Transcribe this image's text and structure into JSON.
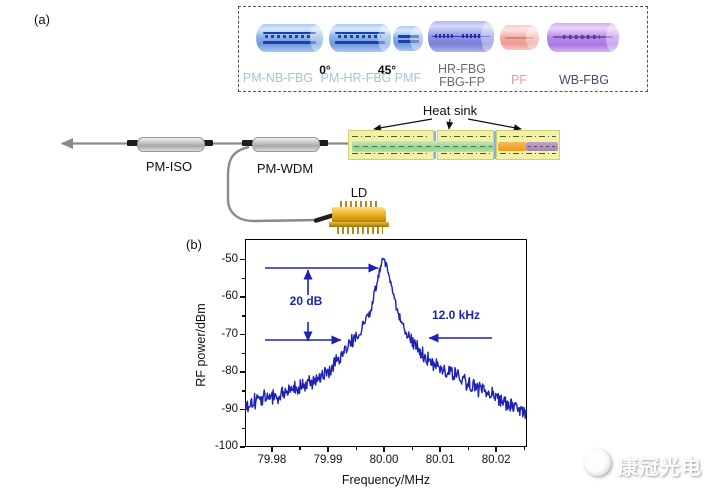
{
  "figure": {
    "panel_a_label": "(a)",
    "panel_b_label": "(b)"
  },
  "legend_box": {
    "items": [
      {
        "label": "PM-NB-FBG",
        "label_color": "#a3c6d1",
        "body_color": "blue"
      },
      {
        "label": "PM-HR-FBG",
        "label_color": "#a3c6d1",
        "body_color": "blue"
      },
      {
        "label": "PMF",
        "label_color": "#a3c6d1",
        "body_color": "blue"
      },
      {
        "label_line1": "HR-FBG",
        "label_line2": "FBG-FP",
        "label_color": "#6b6b6b",
        "body_color": "periwinkle"
      },
      {
        "label": "PF",
        "label_color": "#e79c92",
        "body_color": "pink"
      },
      {
        "label": "WB-FBG",
        "label_color": "#57456a",
        "body_color": "purple"
      }
    ],
    "angle_0": "0°",
    "angle_45": "45°"
  },
  "setup": {
    "pm_iso": "PM-ISO",
    "pm_wdm": "PM-WDM",
    "ld": "LD",
    "heat_sink": "Heat sink"
  },
  "chart_data": {
    "type": "line",
    "title": "",
    "xlabel": "Frequency/MHz",
    "ylabel": "RF power/dBm",
    "xlim": [
      79.9752,
      80.0255
    ],
    "ylim": [
      -100,
      -44.5
    ],
    "x_ticks": [
      79.98,
      79.99,
      80.0,
      80.01,
      80.02
    ],
    "x_tick_labels": [
      "79.98",
      "79.99",
      "80.00",
      "80.01",
      "80.02"
    ],
    "x_minor_ticks": [
      79.985,
      79.995,
      80.005,
      80.015,
      80.025
    ],
    "y_ticks": [
      -50,
      -60,
      -70,
      -80,
      -90,
      -100
    ],
    "y_tick_labels": [
      "-50",
      "-60",
      "-70",
      "-80",
      "-90",
      "-100"
    ],
    "y_minor_ticks": [
      -55,
      -65,
      -75,
      -85,
      -95
    ],
    "grid": false,
    "series_color": "#1e22b4",
    "annotation_color": "#1e22b4",
    "peak": {
      "frequency_mhz": 80.0,
      "power_dbm": -49.8
    },
    "noise_floor_dbm": -90,
    "annotations": [
      {
        "text": "20 dB"
      },
      {
        "text": "12.0 kHz"
      }
    ],
    "envelope": [
      [
        79.9752,
        -89.5
      ],
      [
        79.977,
        -88
      ],
      [
        79.979,
        -86.8
      ],
      [
        79.981,
        -86.2
      ],
      [
        79.983,
        -85.2
      ],
      [
        79.985,
        -84
      ],
      [
        79.987,
        -82.6
      ],
      [
        79.989,
        -81
      ],
      [
        79.9905,
        -79.5
      ],
      [
        79.992,
        -76.5
      ],
      [
        79.9935,
        -73.5
      ],
      [
        79.995,
        -70.8
      ],
      [
        79.996,
        -68.5
      ],
      [
        79.997,
        -65.5
      ],
      [
        79.9978,
        -62
      ],
      [
        79.9985,
        -58
      ],
      [
        79.999,
        -54.5
      ],
      [
        79.9995,
        -51.5
      ],
      [
        80.0,
        -49.8
      ],
      [
        80.0004,
        -51.5
      ],
      [
        80.0008,
        -54
      ],
      [
        80.0013,
        -57.5
      ],
      [
        80.002,
        -61.5
      ],
      [
        80.003,
        -66.5
      ],
      [
        80.004,
        -69.5
      ],
      [
        80.005,
        -71.8
      ],
      [
        80.006,
        -73.8
      ],
      [
        80.0075,
        -76.2
      ],
      [
        80.009,
        -77.6
      ],
      [
        80.01,
        -78.6
      ],
      [
        80.012,
        -80.6
      ],
      [
        80.014,
        -82.2
      ],
      [
        80.016,
        -83.6
      ],
      [
        80.018,
        -85.2
      ],
      [
        80.02,
        -87
      ],
      [
        80.022,
        -88.6
      ],
      [
        80.024,
        -90
      ],
      [
        80.0255,
        -90.5
      ]
    ]
  },
  "watermark": {
    "text": "康冠光电"
  }
}
